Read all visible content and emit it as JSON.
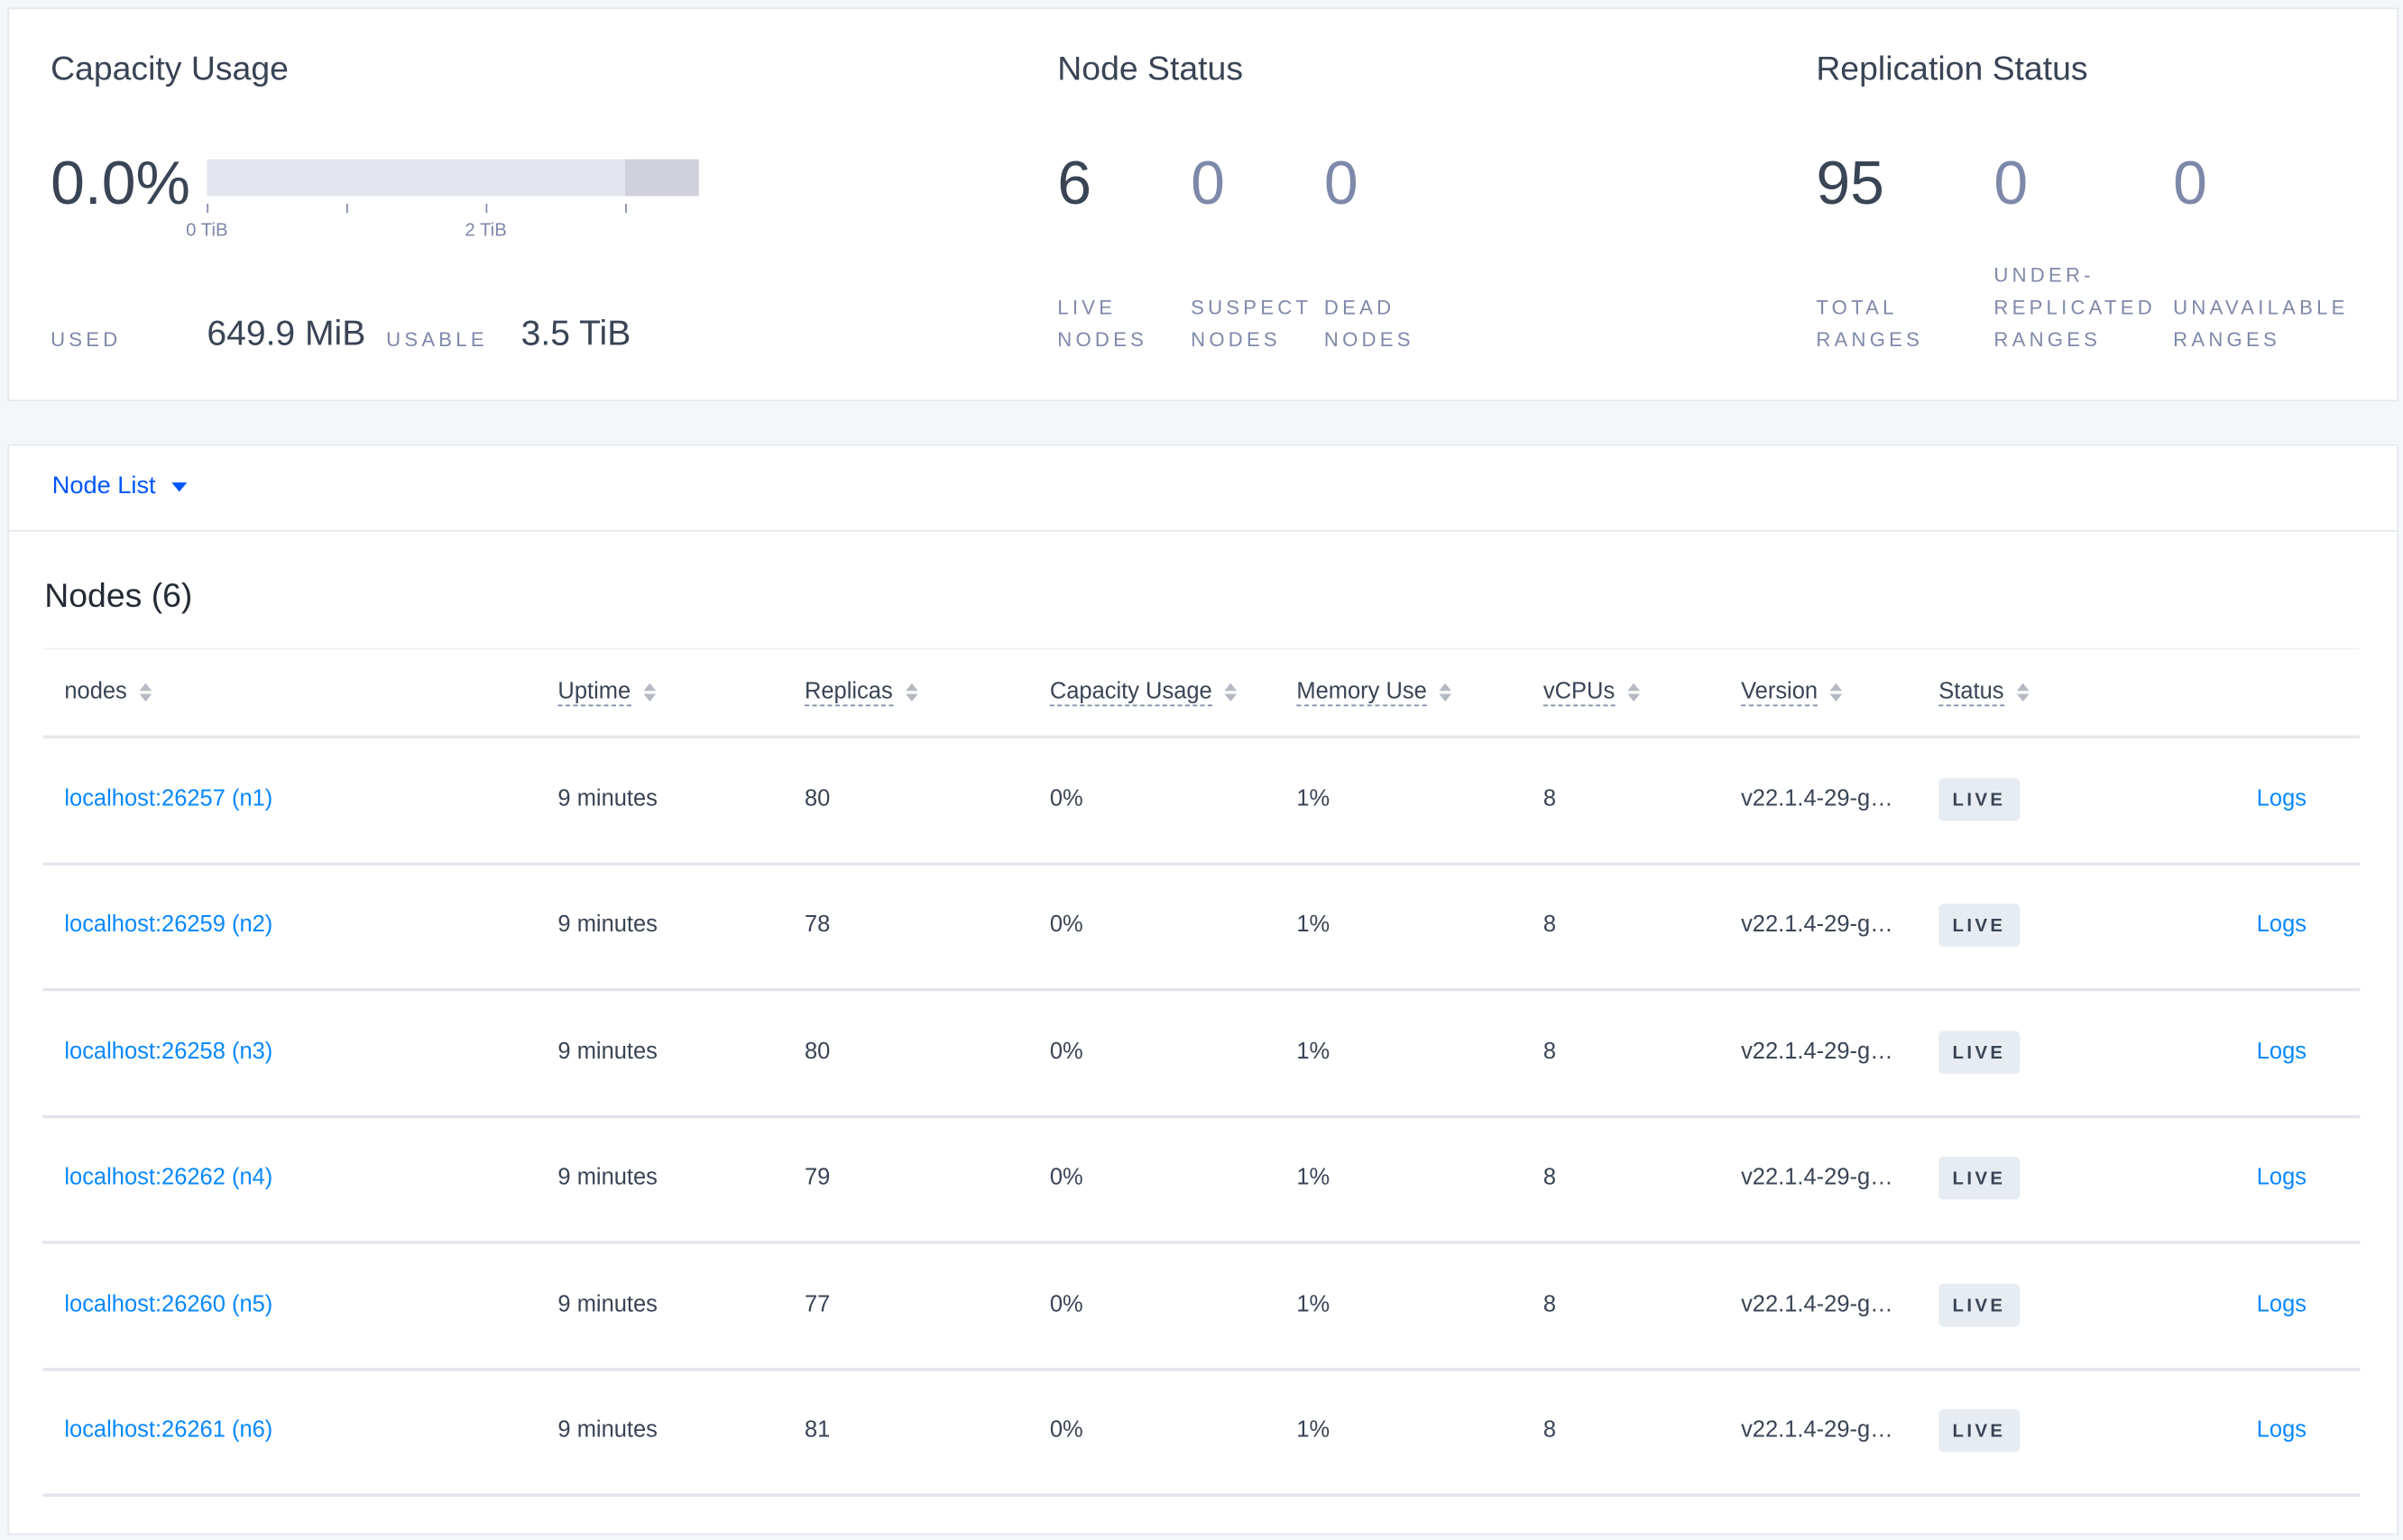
{
  "capacity": {
    "title": "Capacity Usage",
    "percent": "0.0%",
    "used_fraction": 0.0,
    "tick_labels": [
      "0 TiB",
      "2 TiB"
    ],
    "used_label": "USED",
    "used_value": "649.9 MiB",
    "usable_label": "USABLE",
    "usable_value": "3.5 TiB"
  },
  "node_status": {
    "title": "Node Status",
    "items": [
      {
        "value": "6",
        "label1": "LIVE",
        "label2": "NODES"
      },
      {
        "value": "0",
        "label1": "SUSPECT",
        "label2": "NODES"
      },
      {
        "value": "0",
        "label1": "DEAD",
        "label2": "NODES"
      }
    ]
  },
  "replication_status": {
    "title": "Replication Status",
    "items": [
      {
        "value": "95",
        "label0": "",
        "label1": "TOTAL",
        "label2": "RANGES"
      },
      {
        "value": "0",
        "label0": "UNDER-",
        "label1": "REPLICATED",
        "label2": "RANGES"
      },
      {
        "value": "0",
        "label0": "",
        "label1": "UNAVAILABLE",
        "label2": "RANGES"
      }
    ]
  },
  "node_list": {
    "dropdown_label": "Node List",
    "heading": "Nodes (6)",
    "columns": [
      "nodes",
      "Uptime",
      "Replicas",
      "Capacity Usage",
      "Memory Use",
      "vCPUs",
      "Version",
      "Status"
    ],
    "rows": [
      {
        "node": "localhost:26257 (n1)",
        "uptime": "9 minutes",
        "replicas": "80",
        "capacity": "0%",
        "memory": "1%",
        "vcpus": "8",
        "version": "v22.1.4-29-g…",
        "status": "LIVE",
        "logs": "Logs"
      },
      {
        "node": "localhost:26259 (n2)",
        "uptime": "9 minutes",
        "replicas": "78",
        "capacity": "0%",
        "memory": "1%",
        "vcpus": "8",
        "version": "v22.1.4-29-g…",
        "status": "LIVE",
        "logs": "Logs"
      },
      {
        "node": "localhost:26258 (n3)",
        "uptime": "9 minutes",
        "replicas": "80",
        "capacity": "0%",
        "memory": "1%",
        "vcpus": "8",
        "version": "v22.1.4-29-g…",
        "status": "LIVE",
        "logs": "Logs"
      },
      {
        "node": "localhost:26262 (n4)",
        "uptime": "9 minutes",
        "replicas": "79",
        "capacity": "0%",
        "memory": "1%",
        "vcpus": "8",
        "version": "v22.1.4-29-g…",
        "status": "LIVE",
        "logs": "Logs"
      },
      {
        "node": "localhost:26260 (n5)",
        "uptime": "9 minutes",
        "replicas": "77",
        "capacity": "0%",
        "memory": "1%",
        "vcpus": "8",
        "version": "v22.1.4-29-g…",
        "status": "LIVE",
        "logs": "Logs"
      },
      {
        "node": "localhost:26261 (n6)",
        "uptime": "9 minutes",
        "replicas": "81",
        "capacity": "0%",
        "memory": "1%",
        "vcpus": "8",
        "version": "v22.1.4-29-g…",
        "status": "LIVE",
        "logs": "Logs"
      }
    ]
  },
  "colors": {
    "link": "#0788ff",
    "accent": "#0055ff",
    "text": "#394455",
    "muted": "#7e89a9",
    "badge_bg": "#e7ecf3"
  }
}
